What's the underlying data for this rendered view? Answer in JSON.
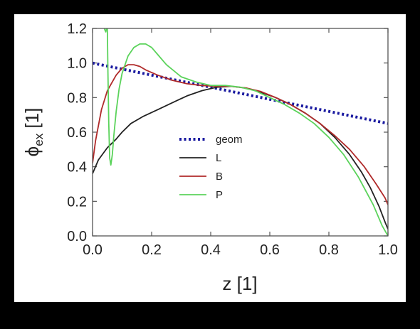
{
  "chart_data": {
    "type": "line",
    "title": "",
    "xlabel": "z [1]",
    "ylabel_main": "ϕ",
    "ylabel_sub": "ex",
    "ylabel_unit": " [1]",
    "xlim": [
      0.0,
      1.0
    ],
    "ylim": [
      0.0,
      1.2
    ],
    "xticks": [
      0.0,
      0.2,
      0.4,
      0.6,
      0.8,
      1.0
    ],
    "yticks": [
      0.0,
      0.2,
      0.4,
      0.6,
      0.8,
      1.0,
      1.2
    ],
    "xtick_labels": [
      "0.0",
      "0.2",
      "0.4",
      "0.6",
      "0.8",
      "1.0"
    ],
    "ytick_labels": [
      "0.0",
      "0.2",
      "0.4",
      "0.6",
      "0.8",
      "1.0",
      "1.2"
    ],
    "grid": false,
    "legend_position": "center",
    "series": [
      {
        "name": "geom",
        "color": "#1a1aa0",
        "style": "dotted",
        "x": [
          0.0,
          1.0
        ],
        "y": [
          1.0,
          0.65
        ]
      },
      {
        "name": "L",
        "color": "#222222",
        "style": "solid",
        "x": [
          0.0,
          0.02,
          0.05,
          0.08,
          0.1,
          0.13,
          0.17,
          0.22,
          0.27,
          0.32,
          0.37,
          0.42,
          0.47,
          0.52,
          0.57,
          0.62,
          0.67,
          0.72,
          0.77,
          0.82,
          0.87,
          0.91,
          0.94,
          0.97,
          0.99,
          1.0
        ],
        "y": [
          0.36,
          0.44,
          0.51,
          0.56,
          0.6,
          0.65,
          0.69,
          0.73,
          0.77,
          0.81,
          0.84,
          0.86,
          0.865,
          0.855,
          0.83,
          0.8,
          0.76,
          0.71,
          0.65,
          0.57,
          0.47,
          0.37,
          0.28,
          0.17,
          0.08,
          0.04
        ]
      },
      {
        "name": "B",
        "color": "#b02a2a",
        "style": "solid",
        "x": [
          0.0,
          0.01,
          0.03,
          0.05,
          0.08,
          0.1,
          0.12,
          0.14,
          0.16,
          0.18,
          0.22,
          0.27,
          0.32,
          0.37,
          0.42,
          0.47,
          0.52,
          0.57,
          0.62,
          0.67,
          0.72,
          0.77,
          0.82,
          0.87,
          0.92,
          0.96,
          0.99,
          1.0
        ],
        "y": [
          0.42,
          0.55,
          0.73,
          0.84,
          0.93,
          0.97,
          0.99,
          0.99,
          0.98,
          0.96,
          0.93,
          0.9,
          0.88,
          0.87,
          0.865,
          0.865,
          0.855,
          0.835,
          0.8,
          0.76,
          0.71,
          0.65,
          0.58,
          0.5,
          0.4,
          0.3,
          0.22,
          0.18
        ]
      },
      {
        "name": "P",
        "color": "#5bd35b",
        "style": "solid",
        "x": [
          0.05,
          0.052,
          0.055,
          0.058,
          0.062,
          0.067,
          0.072,
          0.08,
          0.09,
          0.1,
          0.12,
          0.14,
          0.16,
          0.18,
          0.2,
          0.22,
          0.25,
          0.3,
          0.35,
          0.4,
          0.45,
          0.5,
          0.55,
          0.6,
          0.65,
          0.7,
          0.75,
          0.8,
          0.85,
          0.9,
          0.95,
          0.98,
          1.0
        ],
        "y": [
          1.2,
          0.95,
          0.65,
          0.45,
          0.41,
          0.47,
          0.58,
          0.72,
          0.85,
          0.94,
          1.04,
          1.09,
          1.11,
          1.11,
          1.09,
          1.05,
          0.99,
          0.92,
          0.89,
          0.87,
          0.87,
          0.86,
          0.84,
          0.8,
          0.76,
          0.71,
          0.65,
          0.57,
          0.47,
          0.34,
          0.18,
          0.06,
          0.0
        ]
      },
      {
        "name": "",
        "color": "#5bd35b",
        "style": "solid",
        "x": [
          0.04,
          0.042,
          0.045,
          0.047
        ],
        "y": [
          1.2,
          1.19,
          1.18,
          1.2
        ]
      }
    ]
  }
}
